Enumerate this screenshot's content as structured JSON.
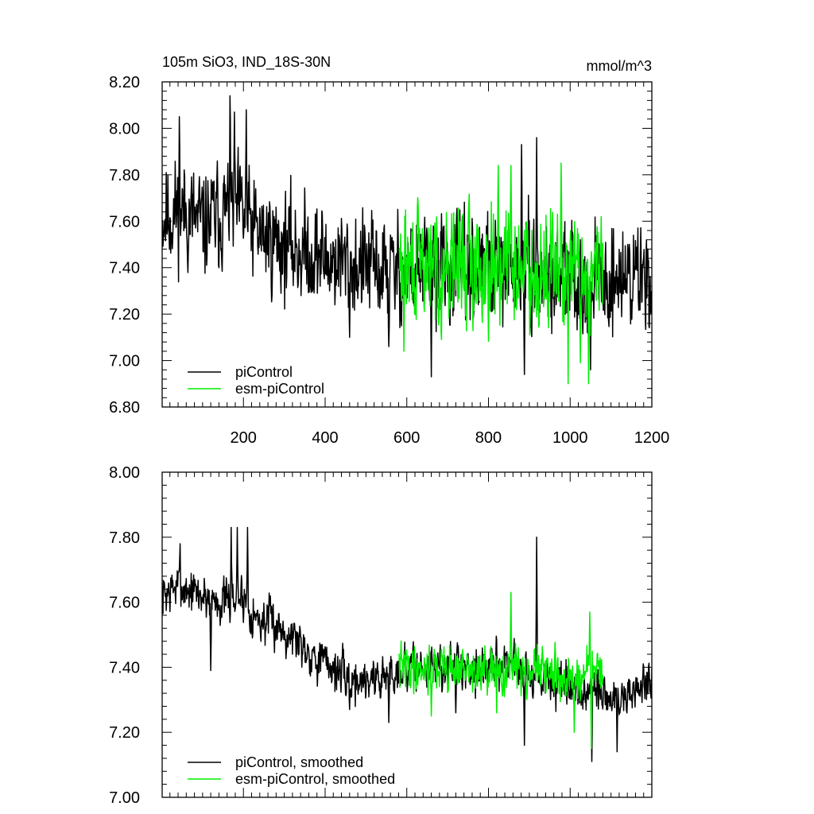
{
  "figure": {
    "title_left": "105m SiO3, IND_18S-30N",
    "title_right": "mmol/m^3",
    "colors": {
      "piControl": "#000000",
      "esm_piControl": "#00ee00"
    }
  },
  "chart_data": [
    {
      "type": "line",
      "panel": "top",
      "title": "105m SiO3, IND_18S-30N",
      "units": "mmol/m^3",
      "xlim": [
        1,
        1200
      ],
      "ylim": [
        6.8,
        8.2
      ],
      "xticks": [
        200,
        400,
        600,
        800,
        1000,
        1200
      ],
      "xtick_labels": [
        "200",
        "400",
        "600",
        "800",
        "1000",
        "1200"
      ],
      "yticks": [
        6.8,
        7.0,
        7.2,
        7.4,
        7.6,
        7.8,
        8.0,
        8.2
      ],
      "ytick_labels": [
        "6.80",
        "7.00",
        "7.20",
        "7.40",
        "7.60",
        "7.80",
        "8.00",
        "8.20"
      ],
      "legend_position": "bottom-left",
      "series": [
        {
          "name": "piControl",
          "color": "#000000",
          "x_range": [
            1,
            1200
          ],
          "noise": 0.16,
          "seed": 11,
          "anchors": [
            [
              1,
              7.62
            ],
            [
              50,
              7.65
            ],
            [
              100,
              7.58
            ],
            [
              170,
              7.66
            ],
            [
              200,
              7.62
            ],
            [
              230,
              7.55
            ],
            [
              300,
              7.5
            ],
            [
              400,
              7.44
            ],
            [
              500,
              7.4
            ],
            [
              570,
              7.38
            ],
            [
              650,
              7.4
            ],
            [
              800,
              7.38
            ],
            [
              900,
              7.38
            ],
            [
              950,
              7.36
            ],
            [
              1000,
              7.35
            ],
            [
              1100,
              7.35
            ],
            [
              1200,
              7.38
            ]
          ],
          "peaks": [
            [
              43,
              8.05
            ],
            [
              167,
              8.14
            ],
            [
              178,
              8.07
            ],
            [
              207,
              8.08
            ],
            [
              918,
              7.96
            ],
            [
              881,
              7.93
            ],
            [
              660,
              6.93
            ],
            [
              888,
              6.94
            ],
            [
              1050,
              6.96
            ],
            [
              460,
              7.1
            ],
            [
              556,
              7.06
            ]
          ]
        },
        {
          "name": "esm-piControl",
          "color": "#00ee00",
          "x_range": [
            581,
            1080
          ],
          "noise": 0.17,
          "seed": 29,
          "anchors": [
            [
              581,
              7.4
            ],
            [
              700,
              7.4
            ],
            [
              800,
              7.42
            ],
            [
              900,
              7.4
            ],
            [
              1000,
              7.38
            ],
            [
              1080,
              7.38
            ]
          ],
          "peaks": [
            [
              855,
              7.84
            ],
            [
              978,
              7.85
            ],
            [
              824,
              7.84
            ],
            [
              593,
              7.04
            ],
            [
              995,
              6.9
            ],
            [
              1045,
              6.9
            ],
            [
              1025,
              6.99
            ]
          ]
        }
      ]
    },
    {
      "type": "line",
      "panel": "bottom",
      "xlim": [
        1,
        1200
      ],
      "ylim": [
        7.0,
        8.0
      ],
      "xticks": [
        200,
        400,
        600,
        800,
        1000,
        1200
      ],
      "yticks": [
        7.0,
        7.2,
        7.4,
        7.6,
        7.8,
        8.0
      ],
      "ytick_labels": [
        "7.00",
        "7.20",
        "7.40",
        "7.60",
        "7.80",
        "8.00"
      ],
      "legend_position": "bottom-left",
      "series": [
        {
          "name": "piControl, smoothed",
          "color": "#000000",
          "x_range": [
            1,
            1200
          ],
          "noise": 0.05,
          "seed": 7,
          "anchors": [
            [
              1,
              7.62
            ],
            [
              40,
              7.65
            ],
            [
              100,
              7.62
            ],
            [
              150,
              7.6
            ],
            [
              200,
              7.62
            ],
            [
              230,
              7.55
            ],
            [
              280,
              7.53
            ],
            [
              320,
              7.5
            ],
            [
              380,
              7.43
            ],
            [
              420,
              7.4
            ],
            [
              460,
              7.36
            ],
            [
              540,
              7.37
            ],
            [
              600,
              7.4
            ],
            [
              700,
              7.4
            ],
            [
              800,
              7.4
            ],
            [
              860,
              7.42
            ],
            [
              900,
              7.38
            ],
            [
              960,
              7.35
            ],
            [
              1000,
              7.32
            ],
            [
              1060,
              7.32
            ],
            [
              1120,
              7.3
            ],
            [
              1200,
              7.36
            ]
          ],
          "peaks": [
            [
              45,
              7.78
            ],
            [
              170,
              7.83
            ],
            [
              185,
              7.83
            ],
            [
              210,
              7.83
            ],
            [
              918,
              7.8
            ],
            [
              120,
              7.39
            ],
            [
              180,
              7.58
            ],
            [
              1053,
              7.11
            ],
            [
              1115,
              7.14
            ],
            [
              888,
              7.16
            ],
            [
              720,
              7.26
            ],
            [
              556,
              7.23
            ],
            [
              460,
              7.27
            ]
          ]
        },
        {
          "name": "esm-piControl, smoothed",
          "color": "#00ee00",
          "x_range": [
            581,
            1080
          ],
          "noise": 0.05,
          "seed": 41,
          "anchors": [
            [
              581,
              7.4
            ],
            [
              700,
              7.4
            ],
            [
              800,
              7.38
            ],
            [
              900,
              7.4
            ],
            [
              1000,
              7.36
            ],
            [
              1080,
              7.4
            ]
          ],
          "peaks": [
            [
              855,
              7.63
            ],
            [
              1048,
              7.57
            ],
            [
              1052,
              7.15
            ],
            [
              1010,
              7.2
            ],
            [
              660,
              7.25
            ],
            [
              820,
              7.26
            ]
          ]
        }
      ]
    }
  ]
}
